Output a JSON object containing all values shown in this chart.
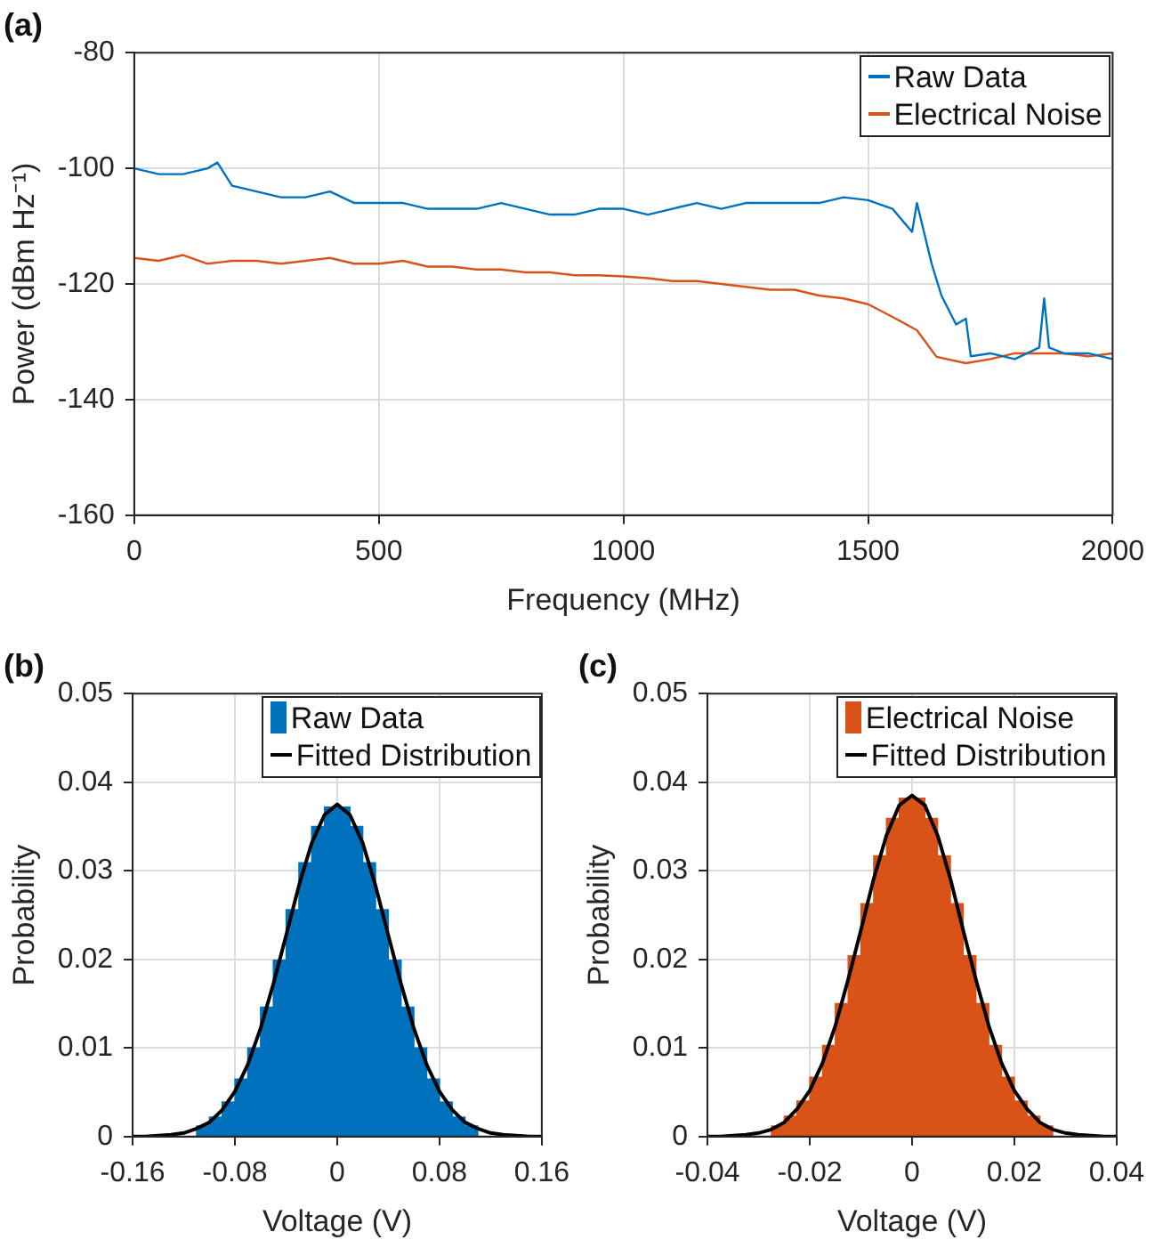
{
  "chart_data": [
    {
      "type": "line",
      "title": "(a)",
      "xlabel": "Frequency (MHz)",
      "ylabel": "Power (dBm Hz⁻¹)",
      "xlim": [
        0,
        2000
      ],
      "xticks": [
        0,
        500,
        1000,
        1500,
        2000
      ],
      "ylim": [
        -160,
        -80
      ],
      "yticks": [
        -160,
        -140,
        -120,
        -100,
        -80
      ],
      "grid": true,
      "legend": "top right",
      "series": [
        {
          "name": "Raw Data",
          "color": "#0072bd",
          "x": [
            0,
            50,
            100,
            150,
            170,
            200,
            250,
            300,
            350,
            400,
            450,
            500,
            550,
            600,
            650,
            700,
            750,
            800,
            850,
            900,
            950,
            1000,
            1050,
            1100,
            1150,
            1200,
            1250,
            1300,
            1350,
            1400,
            1450,
            1500,
            1550,
            1590,
            1600,
            1630,
            1650,
            1680,
            1700,
            1710,
            1750,
            1800,
            1850,
            1860,
            1870,
            1900,
            1950,
            2000
          ],
          "values": [
            -100,
            -101,
            -101,
            -100,
            -99,
            -103,
            -104,
            -105,
            -105,
            -104,
            -106,
            -106,
            -106,
            -107,
            -107,
            -107,
            -106,
            -107,
            -108,
            -108,
            -107,
            -107,
            -108,
            -107,
            -106,
            -107,
            -106,
            -106,
            -106,
            -106,
            -105,
            -105.5,
            -107,
            -111,
            -106,
            -116.5,
            -122,
            -127,
            -126,
            -132.5,
            -132,
            -133,
            -131,
            -122.5,
            -131,
            -132,
            -132,
            -133
          ]
        },
        {
          "name": "Electrical Noise",
          "color": "#d95319",
          "x": [
            0,
            50,
            100,
            150,
            200,
            250,
            300,
            350,
            400,
            450,
            500,
            550,
            600,
            650,
            700,
            750,
            800,
            850,
            900,
            950,
            1000,
            1050,
            1100,
            1150,
            1200,
            1250,
            1300,
            1350,
            1400,
            1450,
            1500,
            1550,
            1600,
            1640,
            1700,
            1750,
            1800,
            1850,
            1900,
            1950,
            2000
          ],
          "values": [
            -115.5,
            -116,
            -115,
            -116.5,
            -116,
            -116,
            -116.5,
            -116,
            -115.5,
            -116.5,
            -116.5,
            -116,
            -117,
            -117,
            -117.5,
            -117.5,
            -118,
            -118,
            -118.5,
            -118.5,
            -118.7,
            -119,
            -119.5,
            -119.5,
            -120,
            -120.5,
            -121,
            -121,
            -122,
            -122.5,
            -123.5,
            -125.7,
            -128,
            -132.6,
            -133.7,
            -133,
            -132,
            -132,
            -132,
            -132.5,
            -132
          ]
        }
      ]
    },
    {
      "type": "histogram",
      "title": "(b)",
      "xlabel": "Voltage (V)",
      "ylabel": "Probability",
      "xlim": [
        -0.16,
        0.16
      ],
      "xticks": [
        -0.16,
        -0.08,
        0,
        0.08,
        0.16
      ],
      "ylim": [
        0,
        0.05
      ],
      "yticks": [
        0,
        0.01,
        0.02,
        0.03,
        0.04,
        0.05
      ],
      "grid": true,
      "legend": "top right",
      "bins": [
        -0.11,
        -0.1,
        -0.09,
        -0.08,
        -0.07,
        -0.06,
        -0.05,
        -0.04,
        -0.03,
        -0.02,
        -0.01,
        0,
        0.01,
        0.02,
        0.03,
        0.04,
        0.05,
        0.06,
        0.07,
        0.08,
        0.09,
        0.1,
        0.11
      ],
      "series": [
        {
          "name": "Raw Data",
          "type": "histogram",
          "color": "#0072bd",
          "values": [
            0.0012,
            0.0022,
            0.0039,
            0.0065,
            0.01,
            0.0146,
            0.0199,
            0.0256,
            0.0309,
            0.035,
            0.0372,
            0.0372,
            0.035,
            0.0309,
            0.0256,
            0.0199,
            0.0146,
            0.01,
            0.0065,
            0.0039,
            0.0022,
            0.0012
          ]
        },
        {
          "name": "Fitted Distribution",
          "type": "line",
          "color": "#000000",
          "x": [
            -0.16,
            -0.15,
            -0.14,
            -0.13,
            -0.12,
            -0.11,
            -0.1,
            -0.09,
            -0.08,
            -0.07,
            -0.06,
            -0.05,
            -0.04,
            -0.03,
            -0.02,
            -0.01,
            0,
            0.01,
            0.02,
            0.03,
            0.04,
            0.05,
            0.06,
            0.07,
            0.08,
            0.09,
            0.1,
            0.11,
            0.12,
            0.13,
            0.14,
            0.15,
            0.16
          ],
          "values": [
            0,
            0,
            0.0001,
            0.0002,
            0.0004,
            0.0009,
            0.0016,
            0.003,
            0.0051,
            0.0081,
            0.0122,
            0.0172,
            0.0227,
            0.0283,
            0.0331,
            0.0363,
            0.0375,
            0.0363,
            0.0331,
            0.0283,
            0.0227,
            0.0172,
            0.0122,
            0.0081,
            0.0051,
            0.003,
            0.0016,
            0.0009,
            0.0004,
            0.0002,
            0.0001,
            0,
            0
          ]
        }
      ]
    },
    {
      "type": "histogram",
      "title": "(c)",
      "xlabel": "Voltage (V)",
      "ylabel": "Probability",
      "xlim": [
        -0.04,
        0.04
      ],
      "xticks": [
        -0.04,
        -0.02,
        0,
        0.02,
        0.04
      ],
      "ylim": [
        0,
        0.05
      ],
      "yticks": [
        0,
        0.01,
        0.02,
        0.03,
        0.04,
        0.05
      ],
      "grid": true,
      "legend": "top right",
      "bins": [
        -0.0275,
        -0.025,
        -0.0225,
        -0.02,
        -0.0175,
        -0.015,
        -0.0125,
        -0.01,
        -0.0075,
        -0.005,
        -0.0025,
        0,
        0.0025,
        0.005,
        0.0075,
        0.01,
        0.0125,
        0.015,
        0.0175,
        0.02,
        0.0225,
        0.025,
        0.0275
      ],
      "series": [
        {
          "name": "Electrical Noise",
          "type": "histogram",
          "color": "#d95319",
          "values": [
            0.0012,
            0.0023,
            0.004,
            0.0067,
            0.0103,
            0.015,
            0.0204,
            0.0263,
            0.0317,
            0.0359,
            0.0382,
            0.0382,
            0.0359,
            0.0317,
            0.0263,
            0.0204,
            0.015,
            0.0103,
            0.0067,
            0.004,
            0.0023,
            0.0012
          ]
        },
        {
          "name": "Fitted Distribution",
          "type": "line",
          "color": "#000000",
          "x": [
            -0.04,
            -0.0375,
            -0.035,
            -0.0325,
            -0.03,
            -0.0275,
            -0.025,
            -0.0225,
            -0.02,
            -0.0175,
            -0.015,
            -0.0125,
            -0.01,
            -0.0075,
            -0.005,
            -0.0025,
            0,
            0.0025,
            0.005,
            0.0075,
            0.01,
            0.0125,
            0.015,
            0.0175,
            0.02,
            0.0225,
            0.025,
            0.0275,
            0.03,
            0.0325,
            0.035,
            0.0375,
            0.04
          ],
          "values": [
            0,
            0,
            0.0001,
            0.0002,
            0.0004,
            0.0008,
            0.0016,
            0.0031,
            0.0052,
            0.0083,
            0.0125,
            0.0177,
            0.0233,
            0.0291,
            0.034,
            0.0374,
            0.0385,
            0.0374,
            0.034,
            0.0291,
            0.0233,
            0.0177,
            0.0125,
            0.0083,
            0.0052,
            0.0031,
            0.0016,
            0.0008,
            0.0004,
            0.0002,
            0.0001,
            0,
            0
          ]
        }
      ]
    }
  ]
}
